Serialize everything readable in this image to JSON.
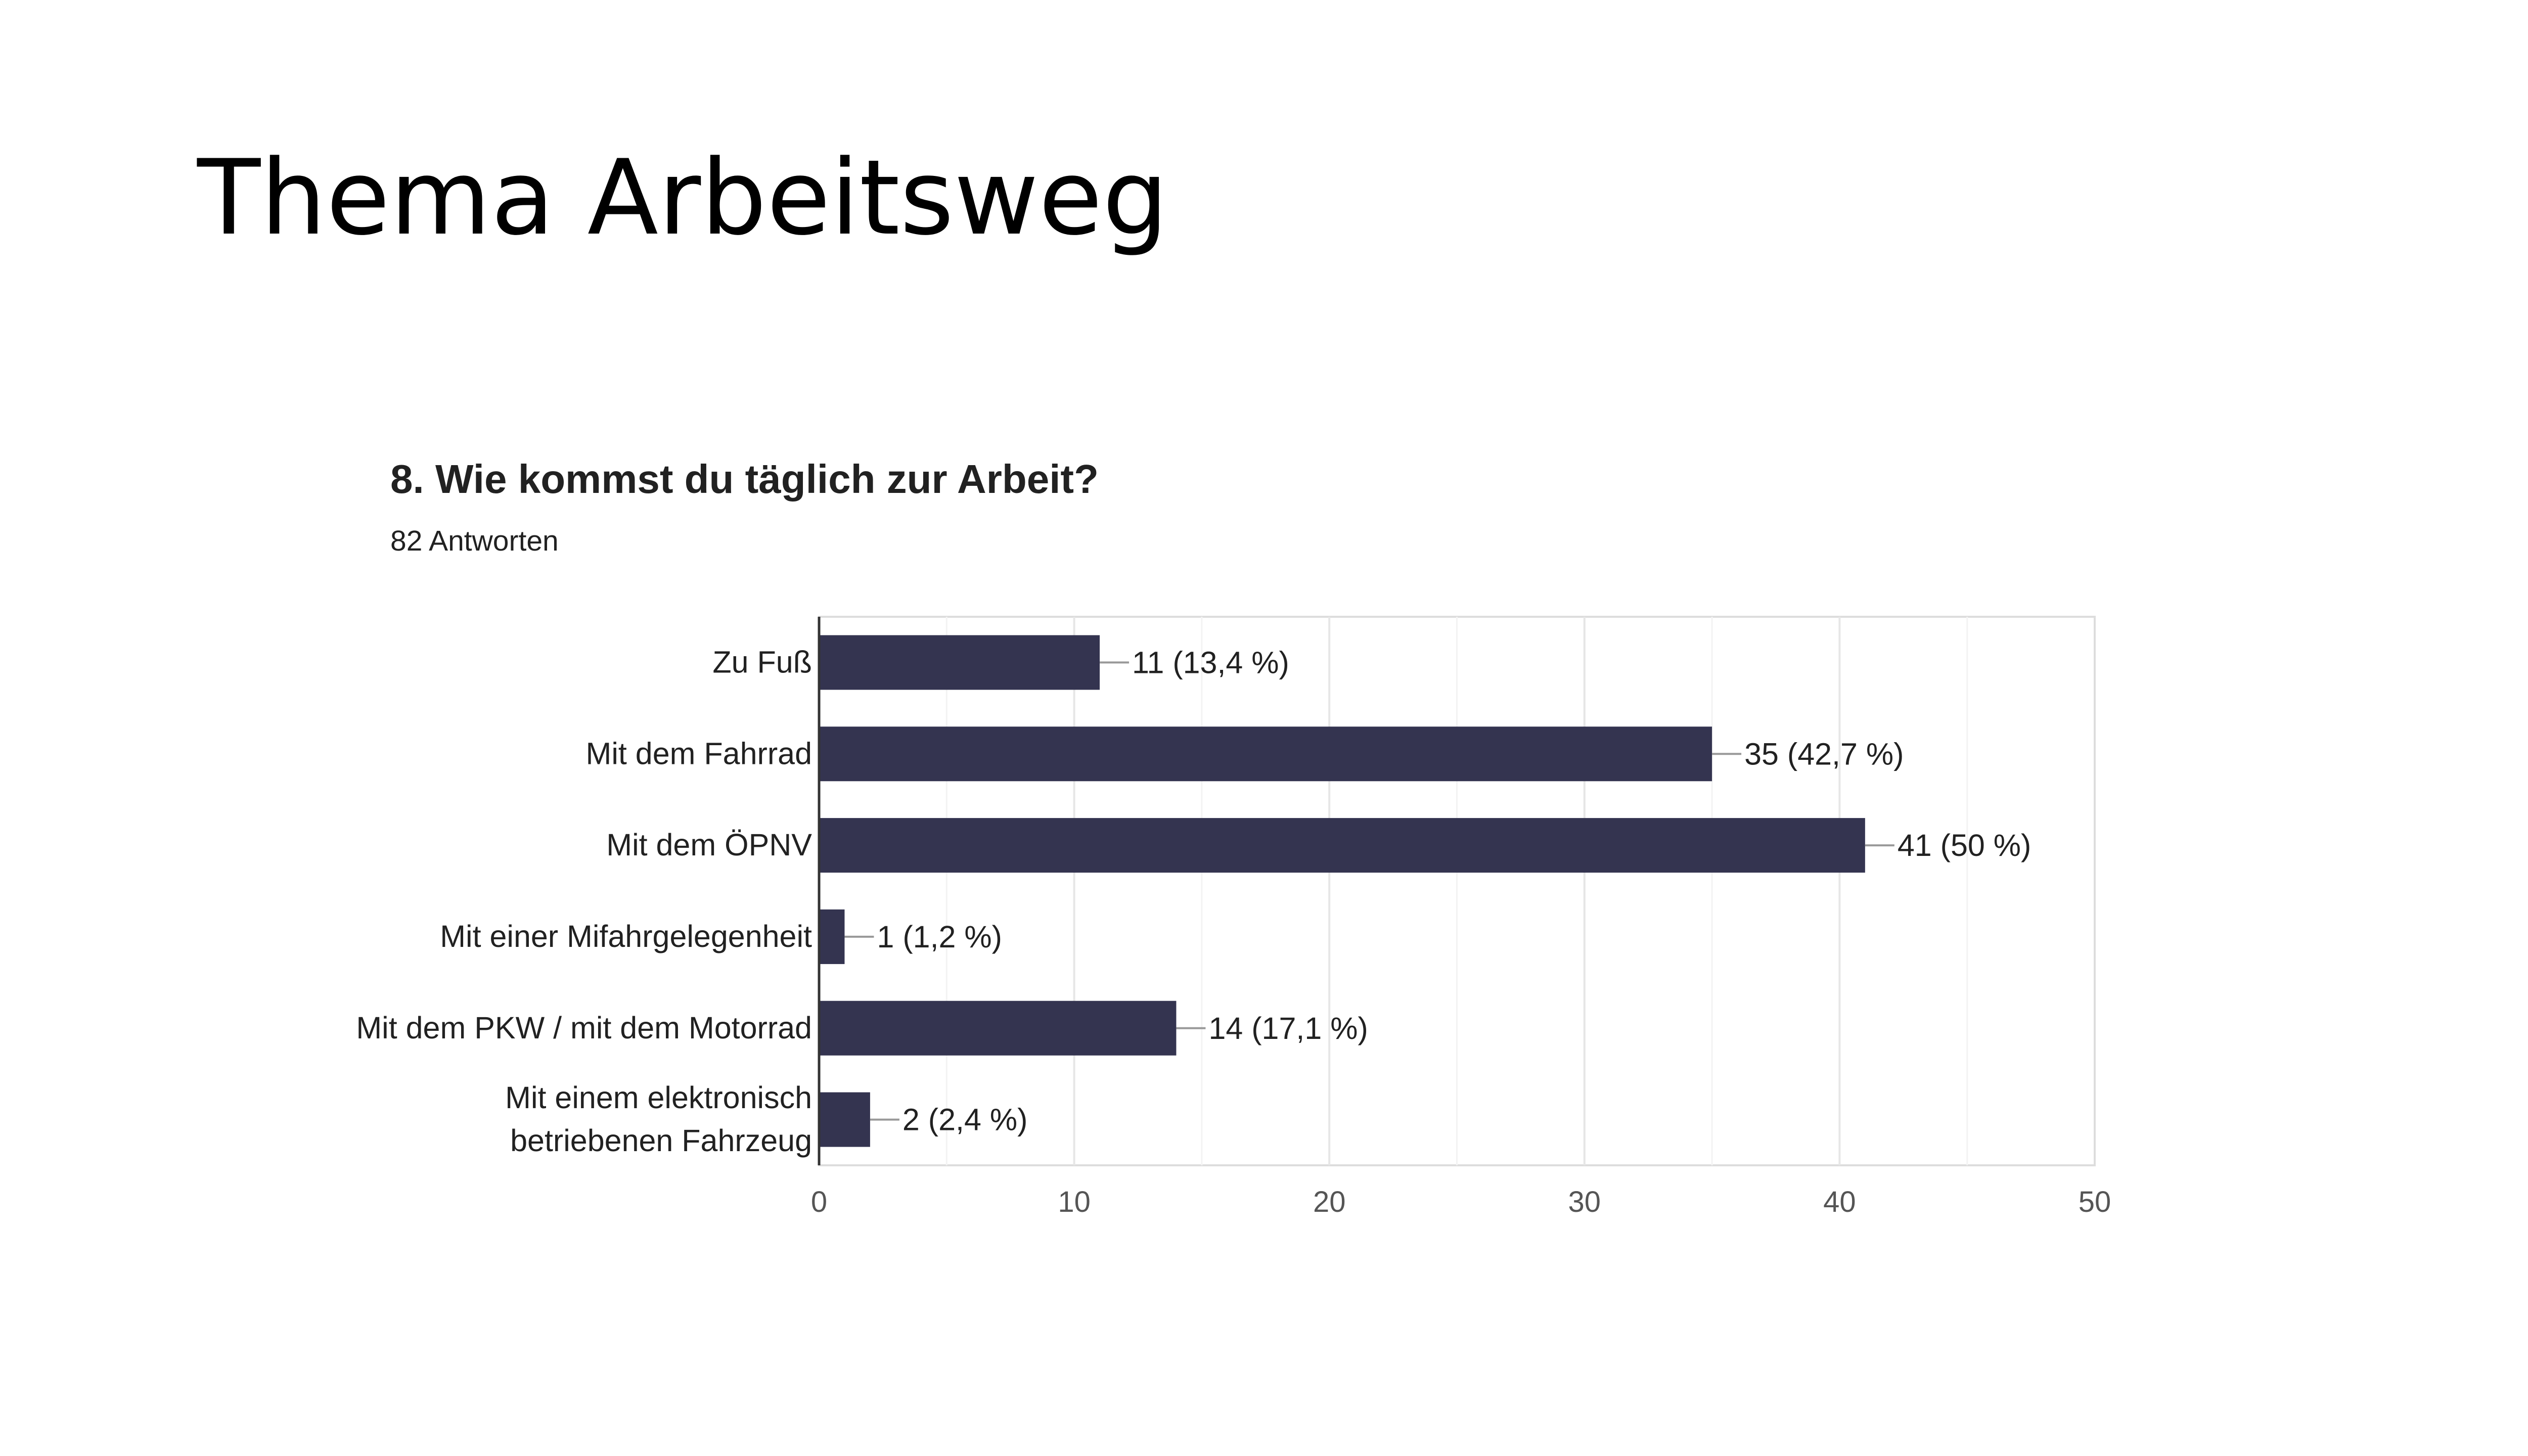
{
  "slide": {
    "title": "Thema Arbeitsweg"
  },
  "question": {
    "title": "8. Wie kommst du täglich zur Arbeit?",
    "responses": "82 Antworten"
  },
  "chart_data": {
    "type": "bar",
    "orientation": "horizontal",
    "categories": [
      [
        "Zu Fuß"
      ],
      [
        "Mit dem Fahrrad"
      ],
      [
        "Mit dem ÖPNV"
      ],
      [
        "Mit einer Mifahrgelegenheit"
      ],
      [
        "Mit dem PKW / mit dem Motorrad"
      ],
      [
        "Mit einem elektronisch",
        "betriebenen Fahrzeug"
      ]
    ],
    "values": [
      11,
      35,
      41,
      1,
      14,
      2
    ],
    "data_labels": [
      "11 (13,4 %)",
      "35 (42,7 %)",
      "41 (50 %)",
      "1 (1,2 %)",
      "14 (17,1 %)",
      "2 (2,4 %)"
    ],
    "xlim": [
      0,
      50
    ],
    "xticks": [
      0,
      10,
      20,
      30,
      40,
      50
    ],
    "grid": true,
    "legend": "none"
  },
  "colors": {
    "bar": "#343450",
    "axis": "#333333",
    "grid": "#ebebeb",
    "frame": "#dddddd",
    "text": "#212121",
    "tick": "#555555",
    "leader": "#999999"
  }
}
